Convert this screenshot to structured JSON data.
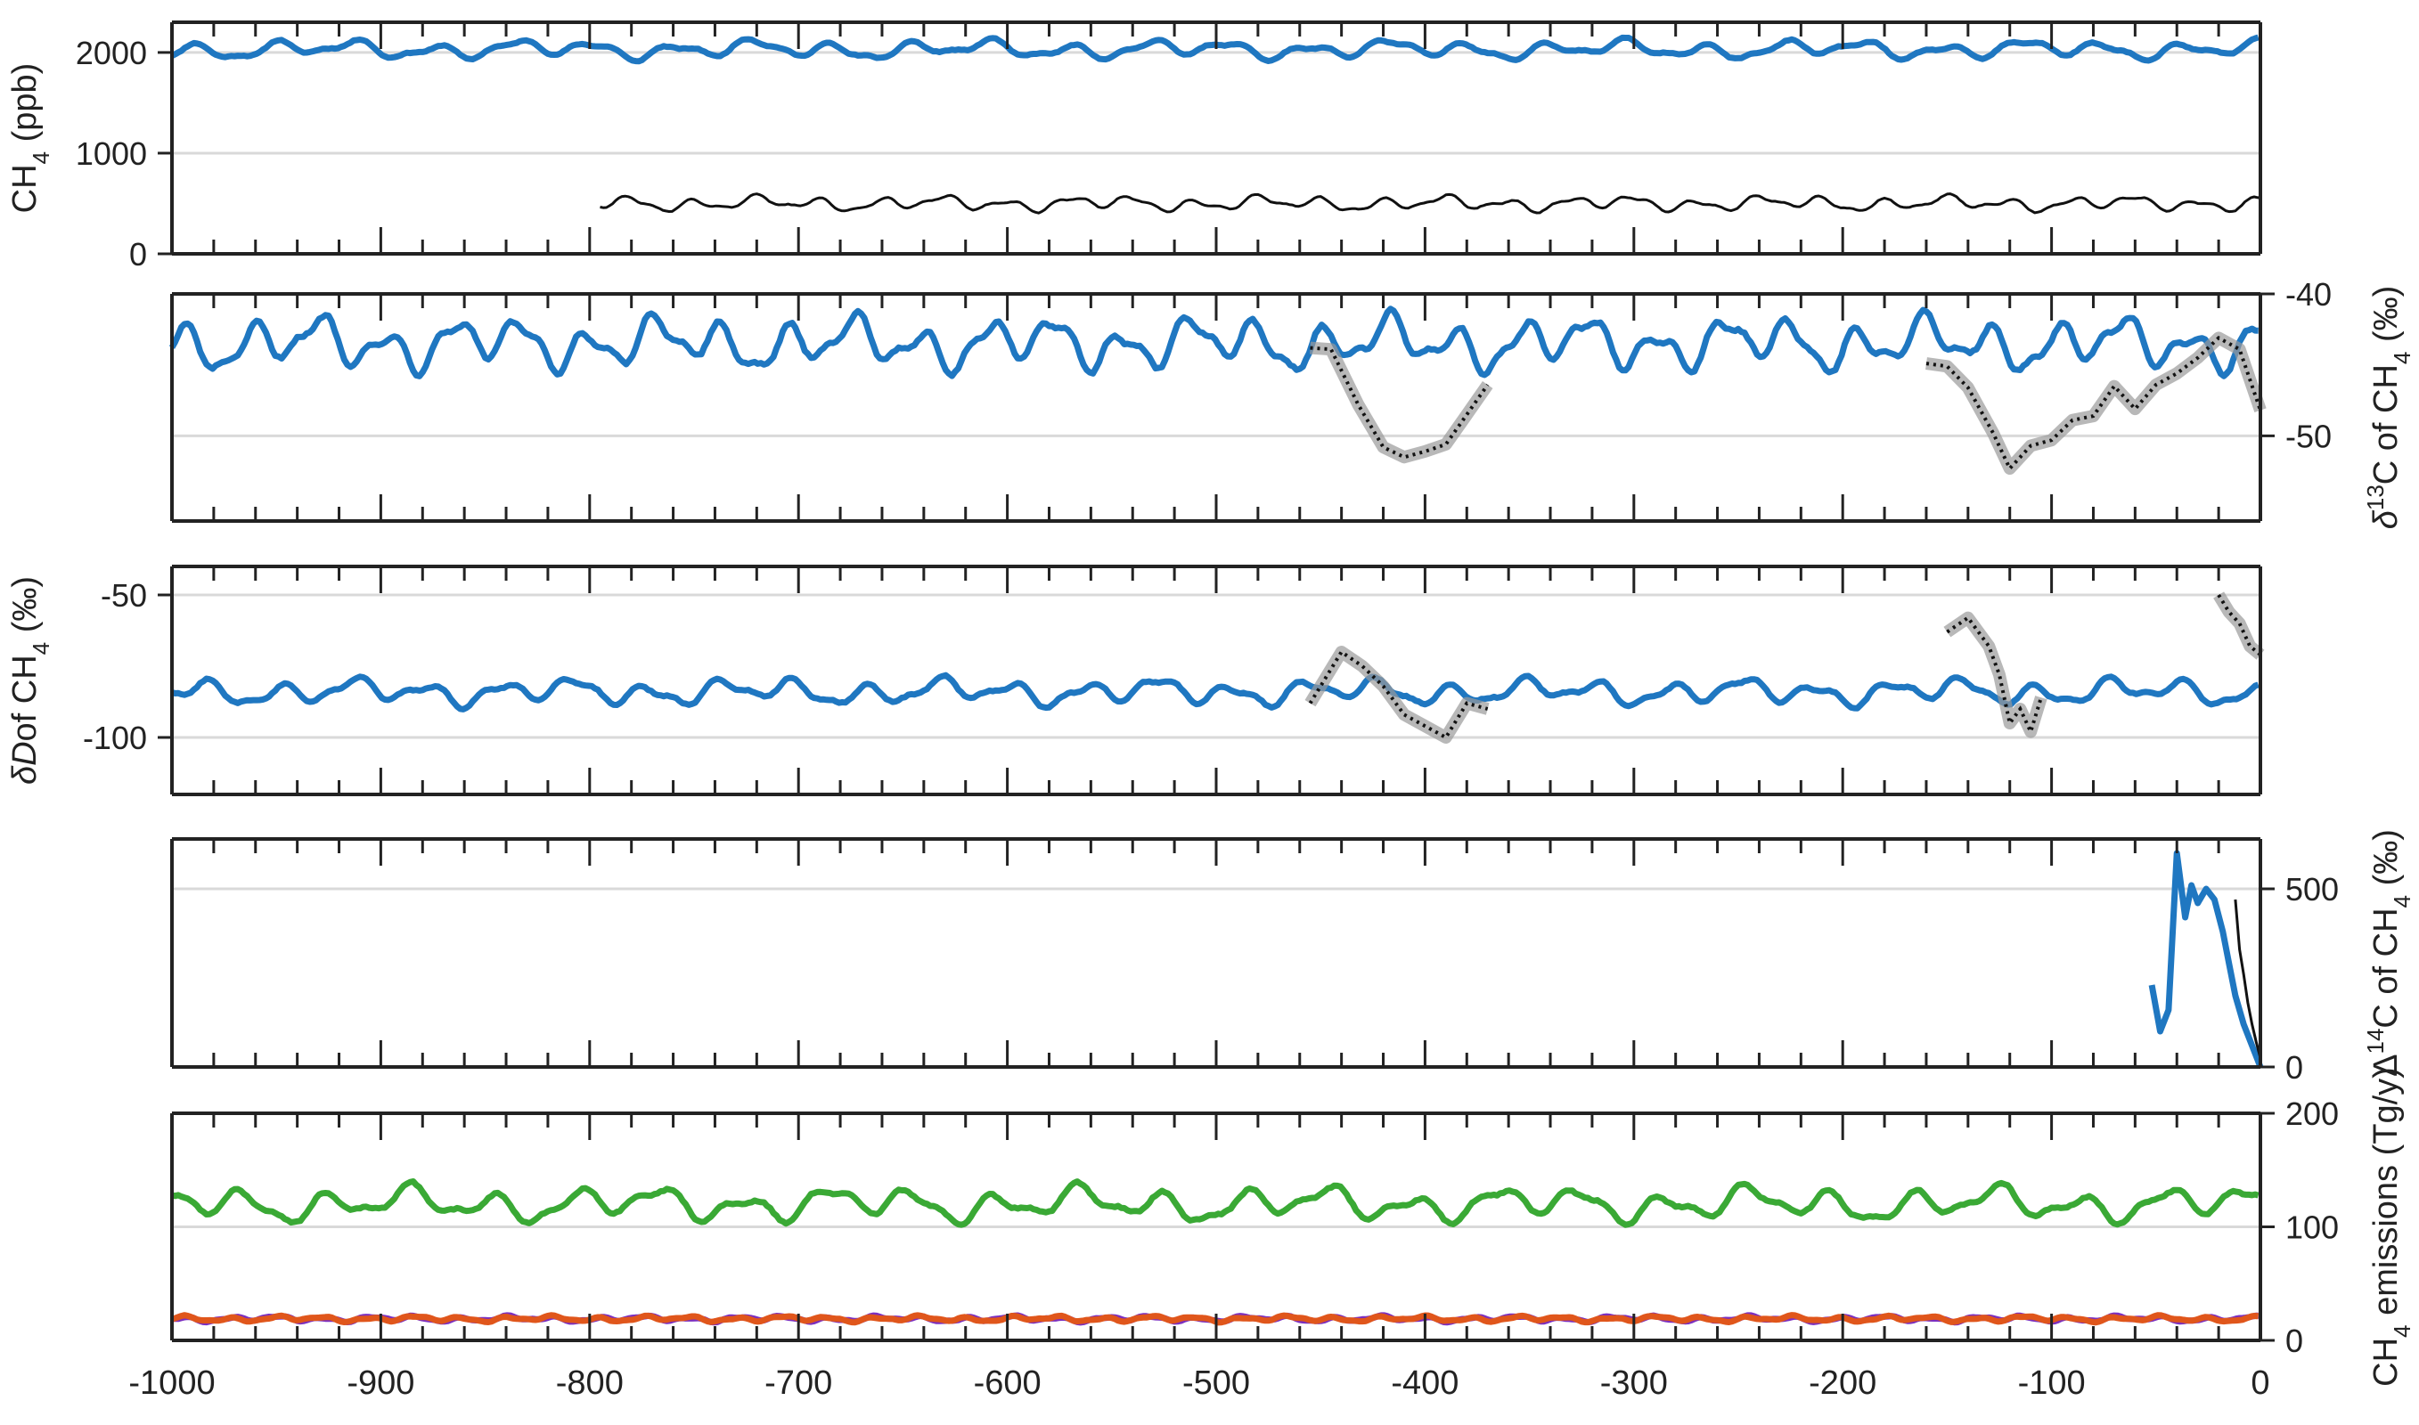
{
  "figure": {
    "type": "multi-panel stacked time series",
    "x_axis": {
      "range": [
        -1000,
        0
      ],
      "tick_labels": [
        "-1000",
        "-900",
        "-800",
        "-700",
        "-600",
        "-500",
        "-400",
        "-300",
        "-200",
        "-100",
        "0"
      ]
    }
  },
  "colors": {
    "model": "#1f77c1",
    "observations": "#111111",
    "obs_band": "#9a9a9a",
    "total_emissions": "#3aa935",
    "emission_a": "#7b2fbf",
    "emission_b": "#e0561b",
    "gridline": "#d9d9d9"
  },
  "chart_data": [
    {
      "type": "line",
      "panel": "ch4",
      "ylabel": "CH4 (ppb)",
      "ylabel_main": "CH",
      "ylabel_sub": "4",
      "ylabel_tail": "(ppb)",
      "ylim": [
        0,
        2300
      ],
      "yticks": [
        0,
        1000,
        2000
      ],
      "tick_side": "left",
      "series": [
        {
          "role": "model",
          "x_start": -1000,
          "x_end": 0,
          "baseline": 2030,
          "variability": 110,
          "period": 38
        },
        {
          "role": "observations",
          "x_start": -795,
          "x_end": 0,
          "baseline": 500,
          "variability": 90,
          "period": 30
        }
      ]
    },
    {
      "type": "line",
      "panel": "d13c",
      "ylabel": "δ13C of CH4 (‰)",
      "ylabel_main": "δ",
      "ylabel_sup": "13",
      "ylabel_c": "C of CH",
      "ylabel_sub": "4",
      "ylabel_tail": "(‰)",
      "ylim": [
        -56,
        -40
      ],
      "yticks": [
        -50,
        -40
      ],
      "tick_side": "right",
      "series": [
        {
          "role": "model",
          "x_start": -1000,
          "x_end": 0,
          "baseline": -43.5,
          "variability": 2.2,
          "period": 32
        },
        {
          "role": "observations",
          "segments": [
            {
              "x": [
                -455,
                -445,
                -432,
                -420,
                -410,
                -400,
                -390,
                -380,
                -370
              ],
              "y": [
                -43.8,
                -43.9,
                -47.8,
                -50.8,
                -51.5,
                -51.1,
                -50.6,
                -48.5,
                -46.4
              ]
            },
            {
              "x": [
                -160,
                -150,
                -140,
                -128,
                -120,
                -110,
                -100,
                -90,
                -80,
                -70,
                -60,
                -50,
                -40,
                -30,
                -20,
                -10,
                0
              ],
              "y": [
                -44.9,
                -45.1,
                -46.6,
                -49.8,
                -52.3,
                -50.7,
                -50.3,
                -48.9,
                -48.6,
                -46.5,
                -48.1,
                -46.4,
                -45.6,
                -44.5,
                -43.1,
                -43.9,
                -48.2
              ]
            }
          ]
        }
      ]
    },
    {
      "type": "line",
      "panel": "dd",
      "ylabel": "δD of CH4 (‰)",
      "ylabel_main": "δD",
      "ylabel_c": "of CH",
      "ylabel_sub": "4",
      "ylabel_tail": "(‰)",
      "ylim": [
        -120,
        -40
      ],
      "yticks": [
        -100,
        -50
      ],
      "tick_side": "left",
      "series": [
        {
          "role": "model",
          "x_start": -1000,
          "x_end": 0,
          "baseline": -84,
          "variability": 5.5,
          "period": 35
        },
        {
          "role": "observations",
          "segments": [
            {
              "x": [
                -455,
                -440,
                -430,
                -420,
                -410,
                -400,
                -390,
                -380,
                -370
              ],
              "y": [
                -88,
                -70,
                -75,
                -82,
                -92,
                -96,
                -100,
                -88,
                -90
              ]
            },
            {
              "x": [
                -150,
                -140,
                -130,
                -125,
                -120,
                -115,
                -110,
                -105
              ],
              "y": [
                -63,
                -58,
                -68,
                -78,
                -95,
                -90,
                -98,
                -86
              ]
            },
            {
              "x": [
                -20,
                -15,
                -10,
                -5,
                0
              ],
              "y": [
                -50,
                -56,
                -60,
                -68,
                -71
              ]
            }
          ]
        }
      ]
    },
    {
      "type": "line",
      "panel": "d14c",
      "ylabel": "Δ14C of CH4 (‰)",
      "ylabel_main": "Δ",
      "ylabel_sup": "14",
      "ylabel_c": "C of CH",
      "ylabel_sub": "4",
      "ylabel_tail": "(‰)",
      "ylim": [
        0,
        640
      ],
      "yticks": [
        0,
        500
      ],
      "tick_side": "right",
      "series": [
        {
          "role": "model",
          "x": [
            -52,
            -48,
            -44,
            -40,
            -36,
            -33,
            -30,
            -26,
            -22,
            -18,
            -15,
            -12,
            -8,
            -4,
            0
          ],
          "y": [
            230,
            100,
            160,
            600,
            420,
            510,
            460,
            500,
            470,
            380,
            290,
            200,
            120,
            60,
            0
          ]
        },
        {
          "role": "observations",
          "x": [
            -12,
            -10,
            -8,
            -6,
            -4,
            -2,
            0
          ],
          "y": [
            470,
            330,
            260,
            180,
            120,
            70,
            25
          ]
        }
      ]
    },
    {
      "type": "line",
      "panel": "emissions",
      "ylabel": "CH4 emissions (Tg/y)",
      "ylabel_main": "CH",
      "ylabel_sub": "4",
      "ylabel_tail": "emissions (Tg/y)",
      "ylim": [
        0,
        200
      ],
      "yticks": [
        0,
        100,
        200
      ],
      "tick_side": "right",
      "series": [
        {
          "role": "total_emissions",
          "x_start": -1000,
          "x_end": 0,
          "baseline": 120,
          "variability": 18,
          "period": 40
        },
        {
          "role": "emission_a",
          "x_start": -1000,
          "x_end": 0,
          "baseline": 19,
          "variability": 3,
          "period": 22
        },
        {
          "role": "emission_b",
          "x_start": -1000,
          "x_end": 0,
          "baseline": 19,
          "variability": 3,
          "period": 22
        }
      ]
    }
  ]
}
